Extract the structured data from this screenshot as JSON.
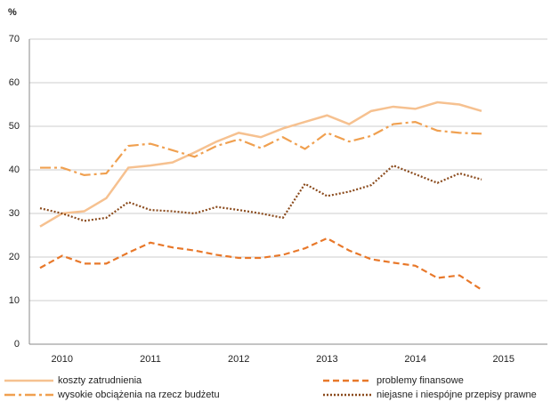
{
  "chart_data": {
    "type": "line",
    "y_label": "%",
    "categories": [
      null,
      "2010",
      null,
      null,
      null,
      "2011",
      null,
      null,
      null,
      "2012",
      null,
      null,
      null,
      "2013",
      null,
      null,
      null,
      "2014",
      null,
      null,
      null,
      "2015"
    ],
    "ylim": [
      0,
      70
    ],
    "yticks": [
      0,
      10,
      20,
      30,
      40,
      50,
      60,
      70
    ],
    "grid": true,
    "series": [
      {
        "name": "koszty zatrudnienia",
        "color": "#f6c190",
        "style": "solid",
        "values": [
          27,
          30,
          30.5,
          33.5,
          40.5,
          41,
          41.7,
          44,
          46.5,
          48.5,
          47.5,
          49.5,
          51,
          52.5,
          50.5,
          53.5,
          54.5,
          54,
          55.5,
          55,
          53.5,
          null
        ]
      },
      {
        "name": "problemy finansowe",
        "color": "#e8782a",
        "style": "dashed",
        "values": [
          17.5,
          20.3,
          18.5,
          18.5,
          21,
          23.3,
          22.2,
          21.5,
          20.5,
          19.8,
          19.8,
          20.5,
          22,
          24.3,
          21.5,
          19.5,
          18.7,
          18,
          15.2,
          15.8,
          12.5,
          null
        ]
      },
      {
        "name": "wysokie obciążenia na rzecz budżetu",
        "color": "#f0a050",
        "style": "dashdot",
        "values": [
          40.5,
          40.5,
          38.8,
          39.2,
          45.5,
          46,
          44.5,
          43,
          45.5,
          47,
          45,
          47.5,
          44.8,
          48.5,
          46.5,
          47.8,
          50.5,
          51,
          49,
          48.5,
          48.3,
          null
        ]
      },
      {
        "name": "niejasne i niespójne przepisy prawne",
        "color": "#8a4a1c",
        "style": "dotted",
        "values": [
          31.2,
          30,
          28.3,
          29,
          32.6,
          30.8,
          30.5,
          30,
          31.5,
          30.8,
          30,
          29,
          36.8,
          34,
          35,
          36.5,
          41,
          39,
          37,
          39.2,
          37.8,
          null
        ]
      }
    ]
  }
}
